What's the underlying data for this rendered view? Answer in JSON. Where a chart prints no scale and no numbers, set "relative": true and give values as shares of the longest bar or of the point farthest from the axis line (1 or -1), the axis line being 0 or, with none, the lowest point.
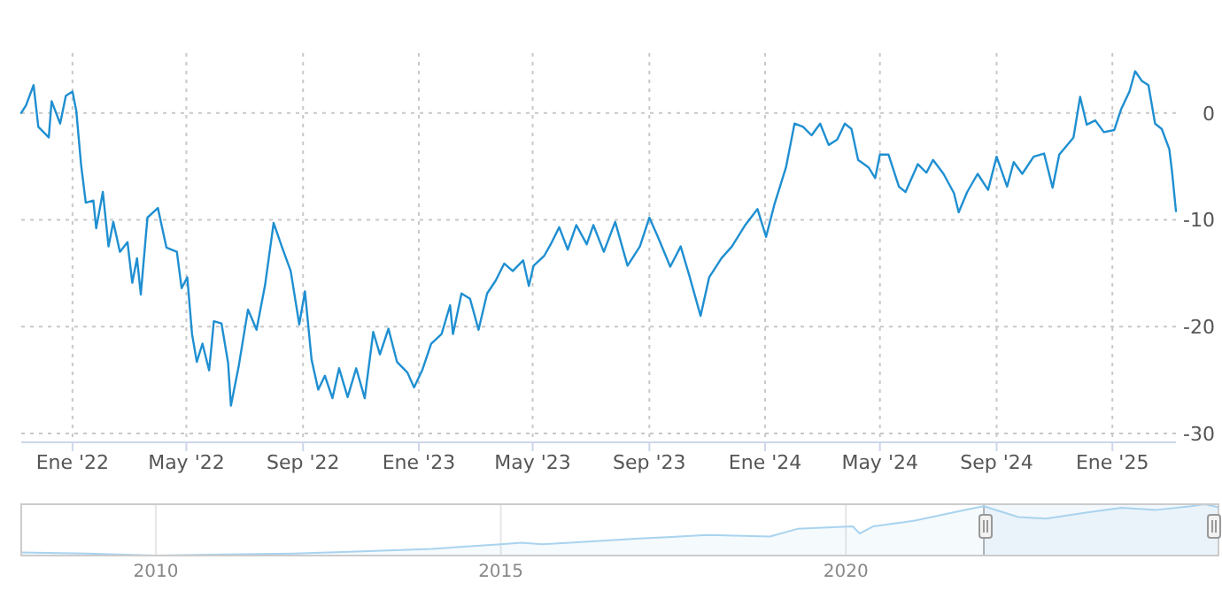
{
  "chart_data": [
    {
      "type": "line",
      "x": [
        "2021-11-08",
        "2021-11-13",
        "2021-11-21",
        "2021-11-26",
        "2021-12-07",
        "2021-12-10",
        "2021-12-19",
        "2021-12-25",
        "2022-01-01",
        "2022-01-05",
        "2022-01-10",
        "2022-01-15",
        "2022-01-23",
        "2022-01-26",
        "2022-02-02",
        "2022-02-08",
        "2022-02-13",
        "2022-02-20",
        "2022-02-28",
        "2022-03-05",
        "2022-03-10",
        "2022-03-14",
        "2022-03-21",
        "2022-04-01",
        "2022-04-10",
        "2022-04-21",
        "2022-04-26",
        "2022-05-02",
        "2022-05-07",
        "2022-05-12",
        "2022-05-18",
        "2022-05-25",
        "2022-05-30",
        "2022-06-07",
        "2022-06-14",
        "2022-06-17",
        "2022-06-25",
        "2022-07-05",
        "2022-07-14",
        "2022-07-23",
        "2022-08-01",
        "2022-08-10",
        "2022-08-19",
        "2022-08-28",
        "2022-09-03",
        "2022-09-10",
        "2022-09-17",
        "2022-09-24",
        "2022-10-02",
        "2022-10-09",
        "2022-10-18",
        "2022-10-27",
        "2022-11-05",
        "2022-11-14",
        "2022-11-21",
        "2022-11-30",
        "2022-12-09",
        "2022-12-20",
        "2022-12-27",
        "2023-01-05",
        "2023-01-14",
        "2023-01-25",
        "2023-02-03",
        "2023-02-06",
        "2023-02-15",
        "2023-02-24",
        "2023-03-05",
        "2023-03-14",
        "2023-03-23",
        "2023-04-01",
        "2023-04-10",
        "2023-04-21",
        "2023-04-27",
        "2023-05-02",
        "2023-05-13",
        "2023-05-20",
        "2023-05-29",
        "2023-06-07",
        "2023-06-16",
        "2023-06-27",
        "2023-07-04",
        "2023-07-15",
        "2023-07-27",
        "2023-08-09",
        "2023-08-22",
        "2023-09-01",
        "2023-09-10",
        "2023-09-23",
        "2023-10-04",
        "2023-10-13",
        "2023-10-25",
        "2023-11-03",
        "2023-11-16",
        "2023-11-27",
        "2023-12-11",
        "2023-12-24",
        "2024-01-02",
        "2024-01-11",
        "2024-01-23",
        "2024-02-01",
        "2024-02-10",
        "2024-02-19",
        "2024-02-28",
        "2024-03-08",
        "2024-03-17",
        "2024-03-25",
        "2024-04-01",
        "2024-04-08",
        "2024-04-19",
        "2024-04-26",
        "2024-05-01",
        "2024-05-10",
        "2024-05-21",
        "2024-05-28",
        "2024-06-10",
        "2024-06-19",
        "2024-06-26",
        "2024-07-07",
        "2024-07-18",
        "2024-07-23",
        "2024-08-01",
        "2024-08-12",
        "2024-08-23",
        "2024-09-01",
        "2024-09-12",
        "2024-09-19",
        "2024-09-28",
        "2024-10-10",
        "2024-10-21",
        "2024-10-30",
        "2024-11-06",
        "2024-11-21",
        "2024-11-28",
        "2024-12-05",
        "2024-12-14",
        "2024-12-23",
        "2025-01-03",
        "2025-01-10",
        "2025-01-19",
        "2025-01-25",
        "2025-02-01",
        "2025-02-08",
        "2025-02-15",
        "2025-02-22",
        "2025-03-02",
        "2025-03-05",
        "2025-03-09"
      ],
      "series": [
        {
          "color": "#1f8fd1",
          "values": [
            0,
            0.7,
            2.6,
            -1.3,
            -2.3,
            1.1,
            -1,
            1.6,
            2,
            0.2,
            -4.8,
            -8.4,
            -8.2,
            -10.8,
            -7.4,
            -12.5,
            -10.2,
            -13,
            -12.1,
            -15.9,
            -13.6,
            -17,
            -9.8,
            -8.9,
            -12.6,
            -13,
            -16.4,
            -15.4,
            -20.7,
            -23.3,
            -21.6,
            -24.1,
            -19.5,
            -19.7,
            -23.4,
            -27.4,
            -23.8,
            -18.4,
            -20.3,
            -16.1,
            -10.3,
            -12.6,
            -14.8,
            -19.8,
            -16.7,
            -23.1,
            -25.9,
            -24.6,
            -26.7,
            -23.9,
            -26.6,
            -23.9,
            -26.7,
            -20.5,
            -22.6,
            -20.2,
            -23.3,
            -24.3,
            -25.7,
            -24,
            -21.6,
            -20.7,
            -18,
            -20.7,
            -16.9,
            -17.4,
            -20.3,
            -16.9,
            -15.7,
            -14.1,
            -14.8,
            -13.8,
            -16.2,
            -14.3,
            -13.4,
            -12.3,
            -10.7,
            -12.8,
            -10.5,
            -12.3,
            -10.5,
            -13,
            -10.2,
            -14.3,
            -12.5,
            -9.8,
            -11.6,
            -14.4,
            -12.5,
            -15.2,
            -19,
            -15.4,
            -13.6,
            -12.5,
            -10.5,
            -9,
            -11.6,
            -8.5,
            -5.1,
            -1,
            -1.3,
            -2.1,
            -1,
            -3,
            -2.5,
            -1,
            -1.5,
            -4.4,
            -5.1,
            -6.1,
            -3.9,
            -3.9,
            -6.9,
            -7.4,
            -4.8,
            -5.6,
            -4.4,
            -5.7,
            -7.5,
            -9.3,
            -7.4,
            -5.7,
            -7.2,
            -4.1,
            -6.9,
            -4.6,
            -5.7,
            -4.1,
            -3.8,
            -7,
            -3.9,
            -2.3,
            1.5,
            -1.1,
            -0.7,
            -1.8,
            -1.6,
            0.3,
            2,
            3.9,
            3,
            2.6,
            -1,
            -1.5,
            -3.4,
            -5.6,
            -9.2
          ]
        }
      ],
      "xlim": [
        "2021-11-08",
        "2025-03-09"
      ],
      "xticks": [
        {
          "value": "2022-01-01",
          "label": "Ene '22"
        },
        {
          "value": "2022-05-01",
          "label": "May '22"
        },
        {
          "value": "2022-09-01",
          "label": "Sep '22"
        },
        {
          "value": "2023-01-01",
          "label": "Ene '23"
        },
        {
          "value": "2023-05-01",
          "label": "May '23"
        },
        {
          "value": "2023-09-01",
          "label": "Sep '23"
        },
        {
          "value": "2024-01-01",
          "label": "Ene '24"
        },
        {
          "value": "2024-05-01",
          "label": "May '24"
        },
        {
          "value": "2024-09-01",
          "label": "Sep '24"
        },
        {
          "value": "2025-01-01",
          "label": "Ene '25"
        }
      ],
      "ylim": [
        -30.5,
        5.6
      ],
      "yticks": [
        -30,
        -20,
        -10,
        0
      ],
      "grid": true
    },
    {
      "type": "area",
      "x": [
        2008.05,
        2009,
        2010,
        2011,
        2012,
        2013,
        2014,
        2015,
        2015.3,
        2015.6,
        2016,
        2017,
        2018,
        2018.9,
        2019.3,
        2020.1,
        2020.2,
        2020.4,
        2021,
        2021.8,
        2022,
        2022.5,
        2022.9,
        2023.5,
        2024,
        2024.5,
        2025,
        2025.2,
        2025.4
      ],
      "series": [
        {
          "color": "#a9d3ee",
          "values": [
            0.06,
            0.04,
            0,
            0.02,
            0.04,
            0.08,
            0.13,
            0.22,
            0.25,
            0.22,
            0.25,
            0.33,
            0.4,
            0.37,
            0.52,
            0.57,
            0.43,
            0.57,
            0.68,
            0.91,
            0.96,
            0.75,
            0.72,
            0.84,
            0.93,
            0.89,
            0.96,
            1,
            0.94
          ]
        }
      ],
      "relative": true,
      "bands": [
        {
          "axis": "x",
          "from": 2022,
          "to": 2025.4,
          "color": "#66a3d9"
        }
      ],
      "xlim": [
        2008.05,
        2025.4
      ],
      "xticks": [
        2010,
        2015,
        2020
      ],
      "tick_labels": "x",
      "grid": "x"
    }
  ]
}
